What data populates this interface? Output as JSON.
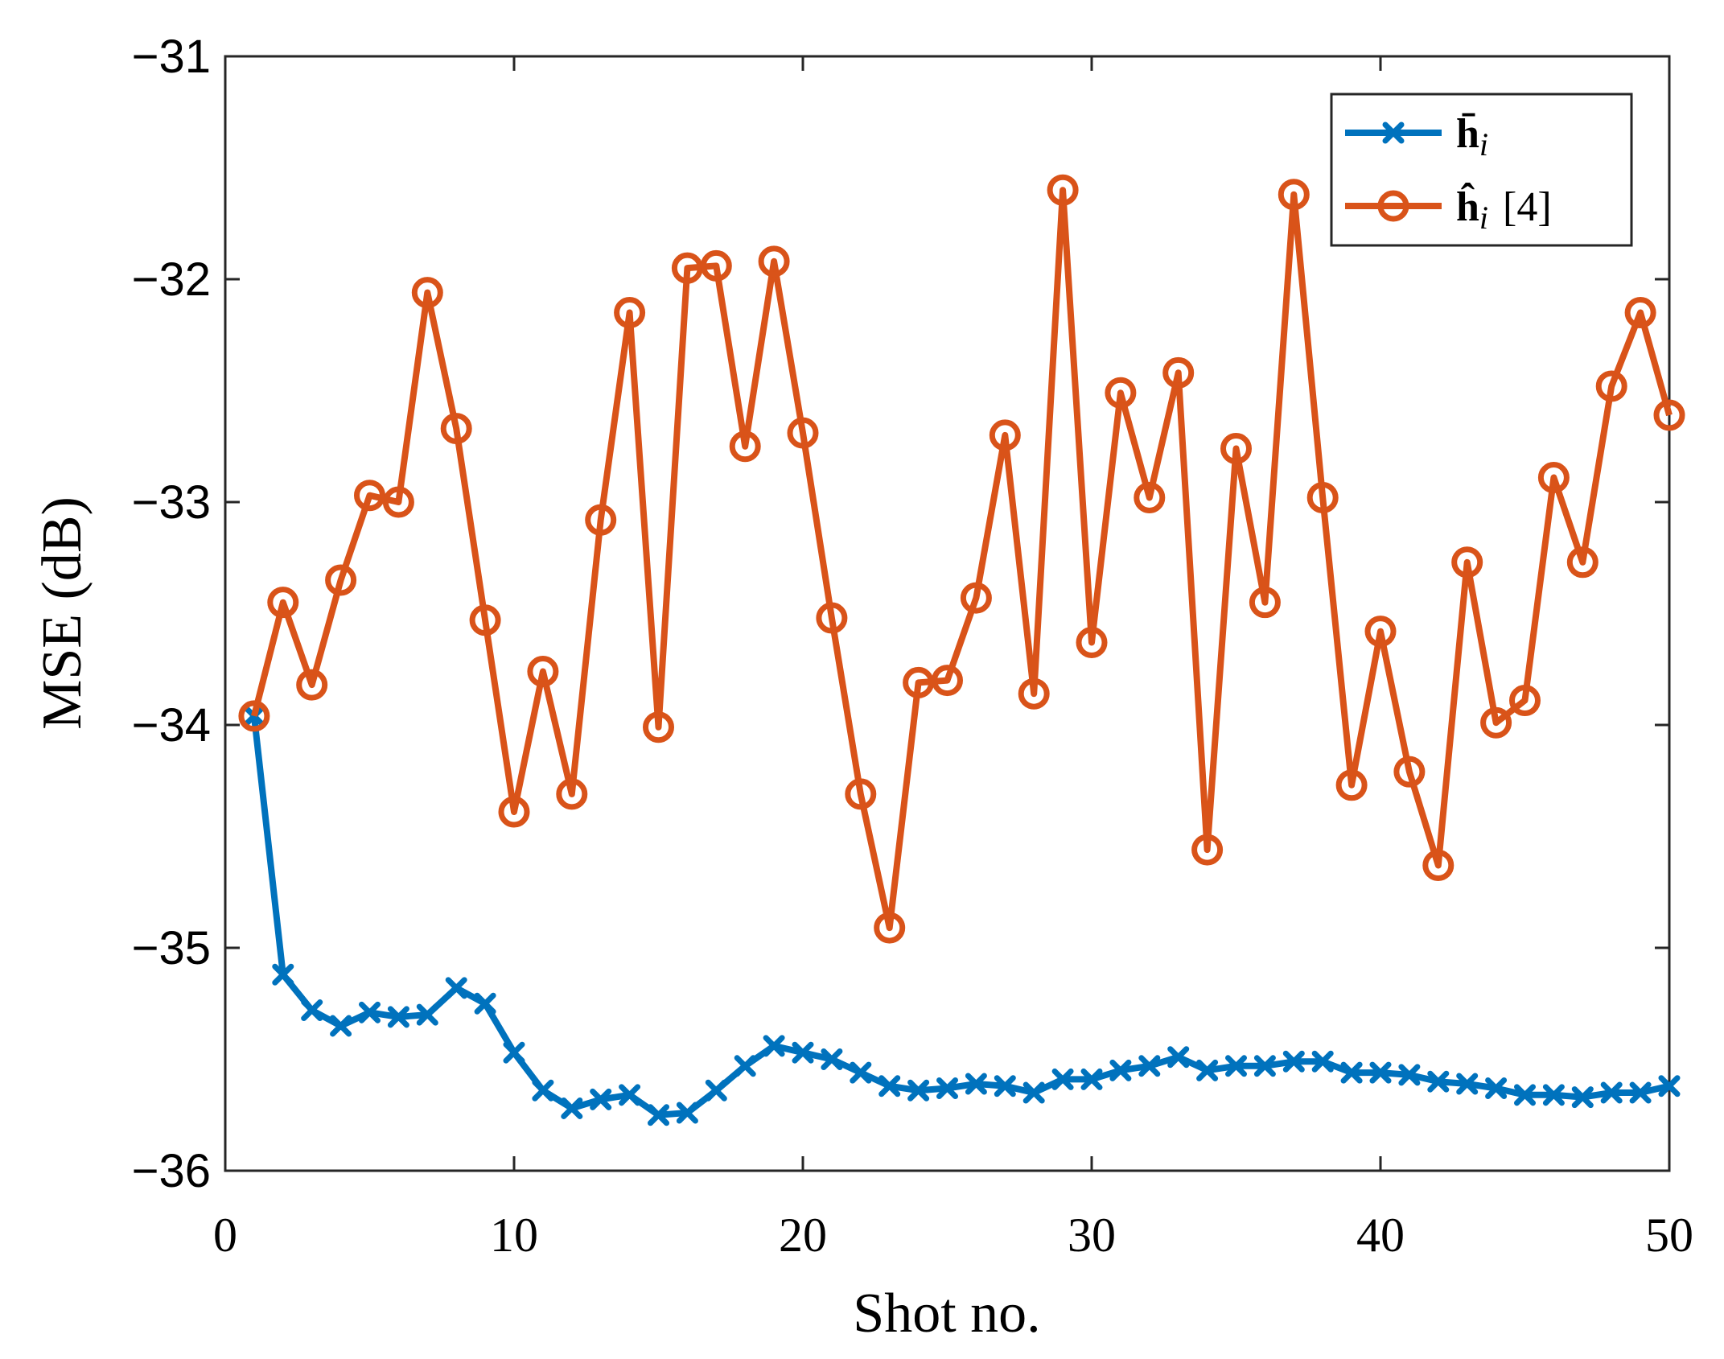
{
  "chart_data": {
    "type": "line",
    "title": "",
    "xlabel": "Shot no.",
    "ylabel": "MSE (dB)",
    "xlim": [
      0,
      50
    ],
    "ylim": [
      -36,
      -31
    ],
    "x_ticks": [
      "0",
      "10",
      "20",
      "30",
      "40",
      "50"
    ],
    "y_ticks": [
      "−36",
      "−35",
      "−34",
      "−33",
      "−32",
      "−31"
    ],
    "grid": false,
    "legend_position": "top-right",
    "x": [
      1,
      2,
      3,
      4,
      5,
      6,
      7,
      8,
      9,
      10,
      11,
      12,
      13,
      14,
      15,
      16,
      17,
      18,
      19,
      20,
      21,
      22,
      23,
      24,
      25,
      26,
      27,
      28,
      29,
      30,
      31,
      32,
      33,
      34,
      35,
      36,
      37,
      38,
      39,
      40,
      41,
      42,
      43,
      44,
      45,
      46,
      47,
      48,
      49,
      50
    ],
    "series": [
      {
        "name": "h̄ᵢ",
        "legend_label": "h̄",
        "legend_sub": "i",
        "color": "#0072BD",
        "marker": "x",
        "values": [
          -33.96,
          -35.12,
          -35.28,
          -35.35,
          -35.29,
          -35.31,
          -35.3,
          -35.18,
          -35.25,
          -35.47,
          -35.64,
          -35.72,
          -35.68,
          -35.66,
          -35.75,
          -35.74,
          -35.64,
          -35.53,
          -35.44,
          -35.47,
          -35.5,
          -35.56,
          -35.62,
          -35.64,
          -35.63,
          -35.61,
          -35.62,
          -35.65,
          -35.59,
          -35.59,
          -35.55,
          -35.53,
          -35.49,
          -35.55,
          -35.53,
          -35.53,
          -35.51,
          -35.51,
          -35.56,
          -35.56,
          -35.57,
          -35.6,
          -35.61,
          -35.63,
          -35.66,
          -35.66,
          -35.67,
          -35.65,
          -35.65,
          -35.62
        ]
      },
      {
        "name": "ĥᵢ [4]",
        "legend_label": "ĥ",
        "legend_sub": "i",
        "legend_suffix": "[4]",
        "color": "#D95319",
        "marker": "o",
        "values": [
          -33.96,
          -33.45,
          -33.82,
          -33.35,
          -32.97,
          -33.0,
          -32.06,
          -32.67,
          -33.53,
          -34.39,
          -33.76,
          -34.31,
          -33.08,
          -32.15,
          -34.01,
          -31.95,
          -31.94,
          -32.75,
          -31.92,
          -32.69,
          -33.52,
          -34.31,
          -34.91,
          -33.81,
          -33.8,
          -33.43,
          -32.7,
          -33.86,
          -31.6,
          -33.63,
          -32.51,
          -32.98,
          -32.42,
          -34.56,
          -32.76,
          -33.45,
          -31.62,
          -32.98,
          -34.27,
          -33.58,
          -34.21,
          -34.63,
          -33.27,
          -33.99,
          -33.89,
          -32.89,
          -33.27,
          -32.48,
          -32.15,
          -32.61
        ]
      }
    ]
  }
}
